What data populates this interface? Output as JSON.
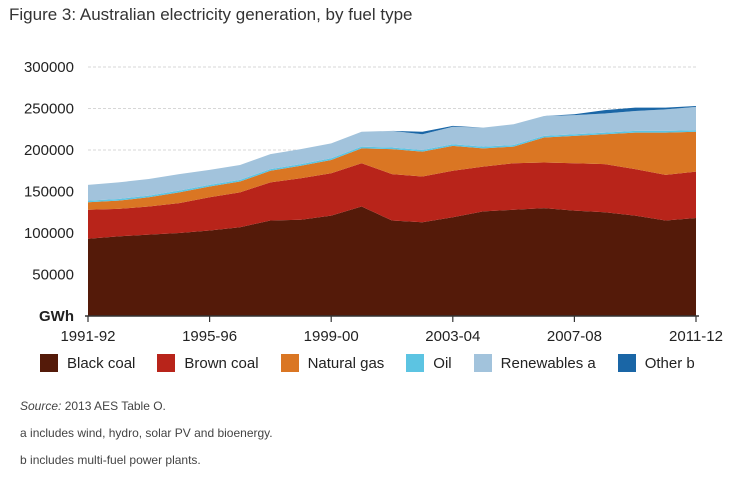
{
  "title": "Figure 3: Australian electricity generation, by fuel type",
  "chart_data": {
    "type": "area",
    "stacked": true,
    "unit_label": "GWh",
    "x": [
      "1991-92",
      "1992-93",
      "1993-94",
      "1994-95",
      "1995-96",
      "1996-97",
      "1997-98",
      "1998-99",
      "1999-00",
      "2000-01",
      "2001-02",
      "2002-03",
      "2003-04",
      "2004-05",
      "2005-06",
      "2006-07",
      "2007-08",
      "2008-09",
      "2009-10",
      "2010-11",
      "2011-12"
    ],
    "xticks": [
      "1991-92",
      "1995-96",
      "1999-00",
      "2003-04",
      "2007-08",
      "2011-12"
    ],
    "yticks": [
      50000,
      100000,
      150000,
      200000,
      250000,
      300000
    ],
    "ylim": [
      0,
      300000
    ],
    "grid": true,
    "series": [
      {
        "name": "Black coal",
        "color": "#541a09",
        "values": [
          93000,
          96000,
          98000,
          100000,
          103000,
          107000,
          115000,
          116000,
          121000,
          132000,
          115000,
          113000,
          119000,
          126000,
          128000,
          130000,
          127000,
          125000,
          121000,
          115000,
          118000
        ]
      },
      {
        "name": "Brown coal",
        "color": "#b8241a",
        "values": [
          35000,
          33000,
          34000,
          36000,
          40000,
          42000,
          46000,
          50000,
          51000,
          52000,
          56000,
          55000,
          56000,
          54000,
          56000,
          55000,
          57000,
          58000,
          56000,
          55000,
          56000
        ]
      },
      {
        "name": "Natural gas",
        "color": "#da7623",
        "values": [
          9000,
          10000,
          11000,
          13000,
          13000,
          13000,
          14000,
          15000,
          16000,
          18000,
          30000,
          30000,
          30000,
          22000,
          20000,
          30000,
          33000,
          36000,
          44000,
          51000,
          48000
        ]
      },
      {
        "name": "Oil",
        "color": "#5cc4e2",
        "values": [
          2000,
          2000,
          2000,
          2000,
          2000,
          2000,
          2000,
          2000,
          2000,
          2000,
          2000,
          2000,
          2000,
          2000,
          2000,
          2000,
          2000,
          2000,
          2000,
          2000,
          2000
        ]
      },
      {
        "name": "Renewables a",
        "color": "#a2c3dc",
        "values": [
          19000,
          20000,
          20000,
          20000,
          18000,
          18000,
          18000,
          18000,
          18000,
          18000,
          20000,
          19000,
          21000,
          23000,
          25000,
          24000,
          23000,
          23000,
          24000,
          26000,
          28000
        ]
      },
      {
        "name": "Other b",
        "color": "#1a66a6",
        "values": [
          0,
          0,
          0,
          0,
          0,
          0,
          0,
          0,
          0,
          0,
          0,
          3000,
          1000,
          0,
          0,
          0,
          1000,
          4000,
          4000,
          2000,
          1000
        ]
      }
    ]
  },
  "notes": {
    "source_label": "Source:",
    "source_text": " 2013 AES Table O.",
    "note_a_mark": "a",
    "note_a_text": " includes wind, hydro, solar PV and bioenergy.",
    "note_b_mark": "b",
    "note_b_text": " includes multi-fuel power plants."
  }
}
